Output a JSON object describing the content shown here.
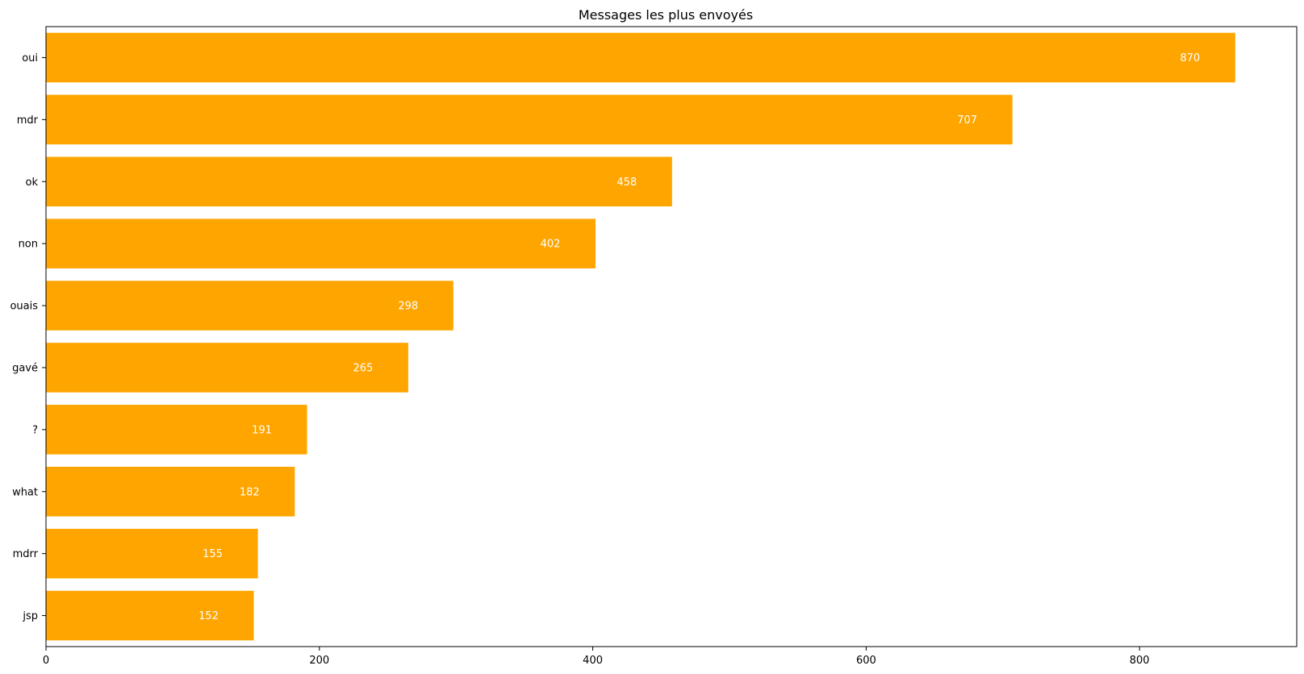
{
  "chart_data": {
    "type": "bar",
    "orientation": "horizontal",
    "title": "Messages les plus envoyés",
    "xlabel": "",
    "ylabel": "",
    "categories": [
      "oui",
      "mdr",
      "ok",
      "non",
      "ouais",
      "gavé",
      "?",
      "what",
      "mdrr",
      "jsp"
    ],
    "values": [
      870,
      707,
      458,
      402,
      298,
      265,
      191,
      182,
      155,
      152
    ],
    "data_labels": [
      "870",
      "707",
      "458",
      "402",
      "298",
      "265",
      "191",
      "182",
      "155",
      "152"
    ],
    "xlim": [
      0,
      915
    ],
    "xticks": [
      0,
      200,
      400,
      600,
      800
    ],
    "xtick_labels": [
      "0",
      "200",
      "400",
      "600",
      "800"
    ],
    "grid": false,
    "bar_color": "#ffa500",
    "label_color": "#ffffff"
  }
}
